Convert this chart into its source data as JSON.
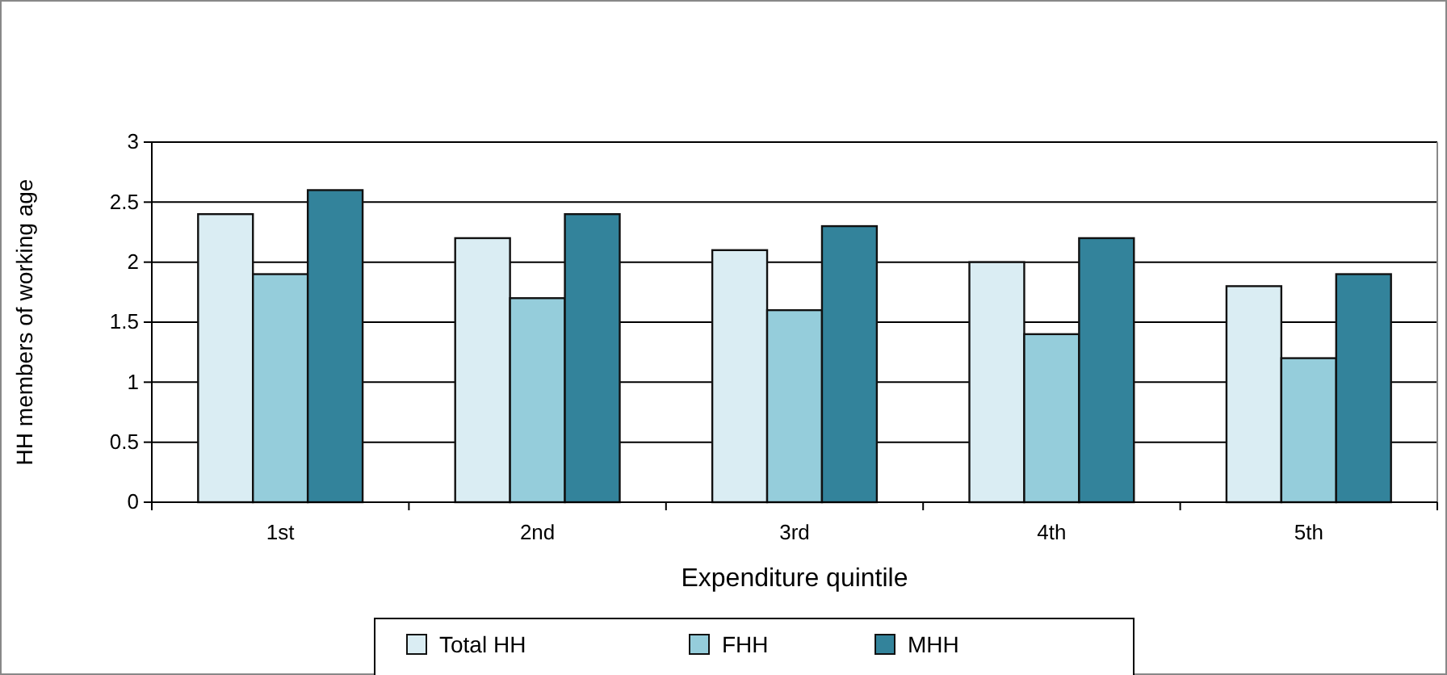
{
  "chart_data": {
    "type": "bar",
    "xlabel": "Expenditure quintile",
    "ylabel": "HH members of working age",
    "categories": [
      "1st",
      "2nd",
      "3rd",
      "4th",
      "5th"
    ],
    "series": [
      {
        "name": "Total HH",
        "color": "#daedf3",
        "values": [
          2.4,
          2.2,
          2.1,
          2.0,
          1.8
        ]
      },
      {
        "name": "FHH",
        "color": "#95cddb",
        "values": [
          1.9,
          1.7,
          1.6,
          1.4,
          1.2
        ]
      },
      {
        "name": "MHH",
        "color": "#33839b",
        "values": [
          2.6,
          2.4,
          2.3,
          2.2,
          1.9
        ]
      }
    ],
    "ylim": [
      0,
      3
    ],
    "yticks": [
      0,
      0.5,
      1,
      1.5,
      2,
      2.5,
      3
    ],
    "grid": "y",
    "legend": "bottom"
  }
}
